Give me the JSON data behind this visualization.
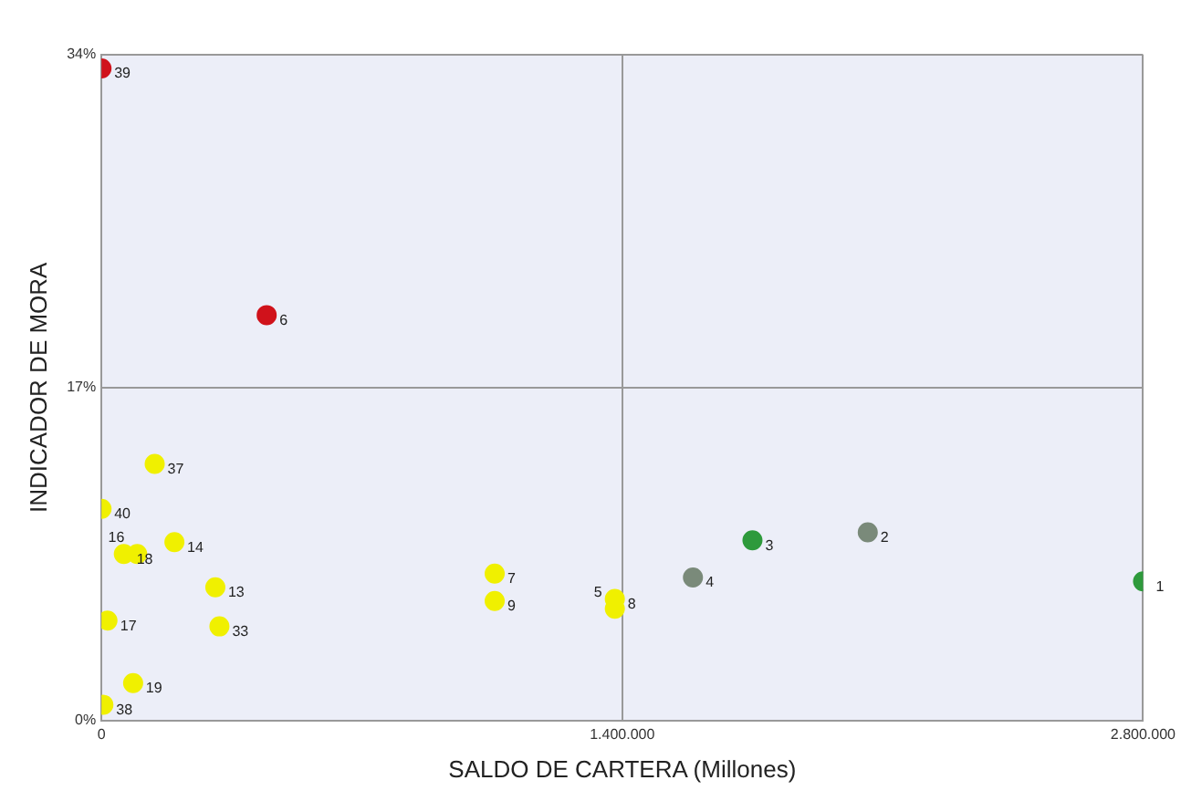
{
  "chart_data": {
    "type": "scatter",
    "xlabel": "SALDO DE CARTERA (Millones)",
    "ylabel": "INDICADOR DE MORA",
    "x": [
      0,
      444000,
      143000,
      0,
      60000,
      196000,
      96000,
      306000,
      16000,
      317000,
      85000,
      5000,
      1057000,
      1057000,
      1380000,
      1380000,
      1590000,
      1750000,
      2060000,
      2800000
    ],
    "values": [
      33.3,
      20.7,
      13.1,
      10.8,
      8.5,
      9.1,
      8.5,
      6.8,
      5.1,
      4.8,
      1.9,
      0.8,
      7.5,
      6.1,
      6.2,
      5.7,
      7.3,
      9.2,
      9.6,
      7.1
    ],
    "colors": [
      "#d0121b",
      "#d0121b",
      "#f0f000",
      "#f0f000",
      "#f0f000",
      "#f0f000",
      "#f0f000",
      "#f0f000",
      "#f0f000",
      "#f0f000",
      "#f0f000",
      "#f0f000",
      "#f0f000",
      "#f0f000",
      "#f0f000",
      "#f0f000",
      "#7a8a7a",
      "#2e9a3c",
      "#7a8a7a",
      "#2e9a3c"
    ],
    "xlim": [
      0,
      2800000
    ],
    "xticks": [
      {
        "value": 0,
        "label": "0"
      },
      {
        "value": 1400000,
        "label": "1.400.000"
      },
      {
        "value": 2800000,
        "label": "2.800.000"
      }
    ],
    "ylim": [
      0,
      34
    ],
    "yticks": [
      {
        "value": 0,
        "label": "0%"
      },
      {
        "value": 17,
        "label": "17%"
      },
      {
        "value": 34,
        "label": "34%"
      }
    ],
    "grid": true,
    "marker": "circle",
    "annotations": [
      {
        "text": "39",
        "x": 0,
        "y": 33.3
      },
      {
        "text": "6",
        "x": 444000,
        "y": 20.7
      },
      {
        "text": "37",
        "x": 143000,
        "y": 13.1
      },
      {
        "text": "40",
        "x": 0,
        "y": 10.8
      },
      {
        "text": "18",
        "x": 60000,
        "y": 8.5
      },
      {
        "text": "14",
        "x": 196000,
        "y": 9.1
      },
      {
        "text": "16",
        "x": 96000,
        "y": 8.5
      },
      {
        "text": "13",
        "x": 306000,
        "y": 6.8
      },
      {
        "text": "17",
        "x": 16000,
        "y": 5.1
      },
      {
        "text": "33",
        "x": 317000,
        "y": 4.8
      },
      {
        "text": "19",
        "x": 85000,
        "y": 1.9
      },
      {
        "text": "38",
        "x": 5000,
        "y": 0.8
      },
      {
        "text": "7",
        "x": 1057000,
        "y": 7.5
      },
      {
        "text": "9",
        "x": 1057000,
        "y": 6.1
      },
      {
        "text": "8",
        "x": 1380000,
        "y": 6.2
      },
      {
        "text": "5",
        "x": 1380000,
        "y": 5.7
      },
      {
        "text": "4",
        "x": 1590000,
        "y": 7.3
      },
      {
        "text": "3",
        "x": 1750000,
        "y": 9.2
      },
      {
        "text": "2",
        "x": 2060000,
        "y": 9.6
      },
      {
        "text": "1",
        "x": 2800000,
        "y": 7.1
      }
    ]
  }
}
